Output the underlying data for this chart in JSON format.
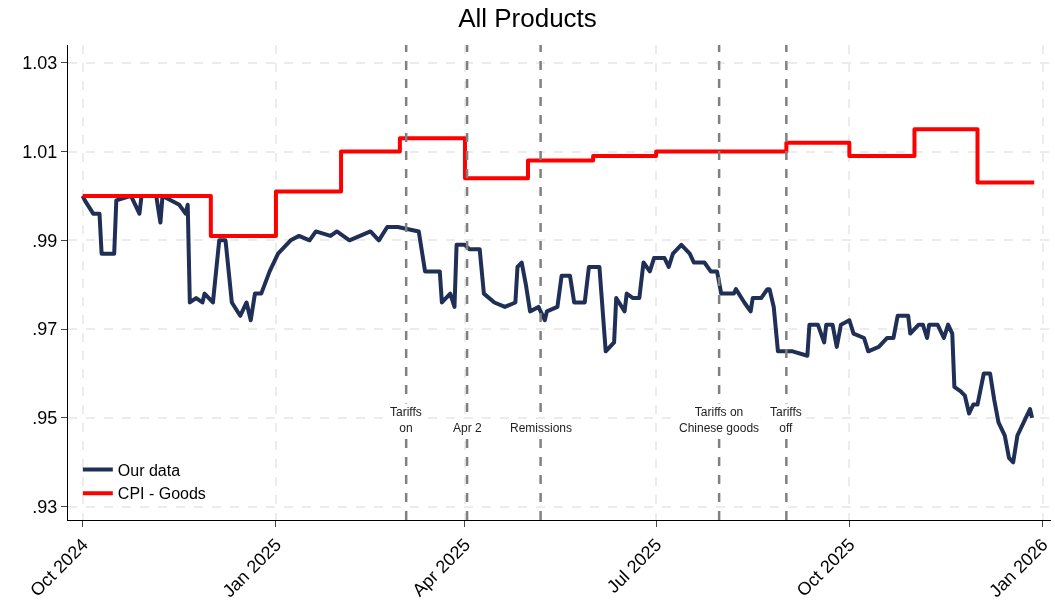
{
  "chart_data": {
    "type": "line",
    "title": "All Products",
    "xlim": [
      "2024-09-24",
      "2026-01-05"
    ],
    "xticks": [
      {
        "value": "2024-10-01",
        "label": "Oct 2024"
      },
      {
        "value": "2025-01-01",
        "label": "Jan 2025"
      },
      {
        "value": "2025-04-01",
        "label": "Apr 2025"
      },
      {
        "value": "2025-07-01",
        "label": "Jul 2025"
      },
      {
        "value": "2025-10-01",
        "label": "Oct 2025"
      },
      {
        "value": "2026-01-01",
        "label": "Jan 2026"
      }
    ],
    "ylim": [
      0.927,
      1.034
    ],
    "yticks": [
      {
        "value": 0.93,
        "label": ".93"
      },
      {
        "value": 0.95,
        "label": ".95"
      },
      {
        "value": 0.97,
        "label": ".97"
      },
      {
        "value": 0.99,
        "label": ".99"
      },
      {
        "value": 1.01,
        "label": "1.01"
      },
      {
        "value": 1.03,
        "label": "1.03"
      }
    ],
    "grid": true,
    "legend": "bottom left",
    "line_style": "solid",
    "marker": "none",
    "series": [
      {
        "name": "Our data",
        "color": "#1f2f55",
        "x": [
          "2024-10-01",
          "2024-10-02",
          "2024-10-06",
          "2024-10-09",
          "2024-10-10",
          "2024-10-16",
          "2024-10-17",
          "2024-10-24",
          "2024-10-28",
          "2024-10-29",
          "2024-11-05",
          "2024-11-07",
          "2024-11-08",
          "2024-11-16",
          "2024-11-19",
          "2024-11-20",
          "2024-11-21",
          "2024-11-24",
          "2024-11-27",
          "2024-11-28",
          "2024-12-02",
          "2024-12-05",
          "2024-12-08",
          "2024-12-11",
          "2024-12-15",
          "2024-12-18",
          "2024-12-20",
          "2024-12-22",
          "2024-12-25",
          "2024-12-29",
          "2025-01-02",
          "2025-01-08",
          "2025-01-12",
          "2025-01-17",
          "2025-01-20",
          "2025-01-27",
          "2025-01-30",
          "2025-02-05",
          "2025-02-10",
          "2025-02-15",
          "2025-02-19",
          "2025-02-23",
          "2025-02-28",
          "2025-03-10",
          "2025-03-13",
          "2025-03-20",
          "2025-03-21",
          "2025-03-25",
          "2025-03-27",
          "2025-03-28",
          "2025-04-01",
          "2025-04-03",
          "2025-04-08",
          "2025-04-10",
          "2025-04-15",
          "2025-04-20",
          "2025-04-25",
          "2025-04-26",
          "2025-04-28",
          "2025-04-30",
          "2025-05-02",
          "2025-05-06",
          "2025-05-09",
          "2025-05-10",
          "2025-05-15",
          "2025-05-17",
          "2025-05-21",
          "2025-05-23",
          "2025-05-28",
          "2025-05-30",
          "2025-06-04",
          "2025-06-07",
          "2025-06-11",
          "2025-06-12",
          "2025-06-16",
          "2025-06-17",
          "2025-06-20",
          "2025-06-23",
          "2025-06-25",
          "2025-06-28",
          "2025-06-30",
          "2025-07-05",
          "2025-07-07",
          "2025-07-09",
          "2025-07-13",
          "2025-07-17",
          "2025-07-19",
          "2025-07-24",
          "2025-07-27",
          "2025-07-30",
          "2025-08-01",
          "2025-08-07",
          "2025-08-08",
          "2025-08-12",
          "2025-08-15",
          "2025-08-16",
          "2025-08-20",
          "2025-08-23",
          "2025-08-24",
          "2025-08-26",
          "2025-08-28",
          "2025-09-04",
          "2025-09-11",
          "2025-09-12",
          "2025-09-16",
          "2025-09-19",
          "2025-09-20",
          "2025-09-23",
          "2025-09-25",
          "2025-09-27",
          "2025-10-01",
          "2025-10-03",
          "2025-10-08",
          "2025-10-10",
          "2025-10-15",
          "2025-10-17",
          "2025-10-19",
          "2025-10-22",
          "2025-10-24",
          "2025-10-29",
          "2025-10-30",
          "2025-11-03",
          "2025-11-05",
          "2025-11-07",
          "2025-11-08",
          "2025-11-12",
          "2025-11-15",
          "2025-11-17",
          "2025-11-19",
          "2025-11-20",
          "2025-11-23",
          "2025-11-25",
          "2025-11-27",
          "2025-11-29",
          "2025-12-01",
          "2025-12-04",
          "2025-12-07",
          "2025-12-09",
          "2025-12-11",
          "2025-12-14",
          "2025-12-16",
          "2025-12-18",
          "2025-12-20",
          "2025-12-24",
          "2025-12-26",
          "2025-12-27"
        ],
        "values": [
          1.0,
          0.999,
          0.996,
          0.996,
          0.987,
          0.987,
          0.999,
          1.0,
          0.996,
          1.0,
          1.0,
          0.994,
          1.0,
          0.998,
          0.996,
          0.998,
          0.976,
          0.977,
          0.976,
          0.978,
          0.976,
          0.99,
          0.99,
          0.976,
          0.973,
          0.976,
          0.972,
          0.978,
          0.978,
          0.983,
          0.987,
          0.99,
          0.991,
          0.99,
          0.992,
          0.991,
          0.992,
          0.99,
          0.991,
          0.992,
          0.99,
          0.993,
          0.993,
          0.992,
          0.983,
          0.983,
          0.976,
          0.978,
          0.975,
          0.989,
          0.989,
          0.988,
          0.988,
          0.978,
          0.976,
          0.975,
          0.976,
          0.984,
          0.985,
          0.98,
          0.974,
          0.975,
          0.972,
          0.974,
          0.975,
          0.982,
          0.982,
          0.976,
          0.976,
          0.984,
          0.984,
          0.965,
          0.967,
          0.977,
          0.974,
          0.978,
          0.977,
          0.977,
          0.985,
          0.983,
          0.986,
          0.986,
          0.984,
          0.987,
          0.989,
          0.987,
          0.985,
          0.985,
          0.983,
          0.983,
          0.978,
          0.978,
          0.979,
          0.976,
          0.974,
          0.977,
          0.977,
          0.979,
          0.979,
          0.975,
          0.965,
          0.965,
          0.964,
          0.971,
          0.971,
          0.967,
          0.971,
          0.971,
          0.966,
          0.971,
          0.972,
          0.969,
          0.968,
          0.965,
          0.966,
          0.967,
          0.968,
          0.968,
          0.973,
          0.973,
          0.969,
          0.971,
          0.971,
          0.968,
          0.971,
          0.971,
          0.968,
          0.971,
          0.969,
          0.957,
          0.956,
          0.955,
          0.951,
          0.953,
          0.953,
          0.96,
          0.96,
          0.954,
          0.949,
          0.946,
          0.941,
          0.94,
          0.946,
          0.95,
          0.952,
          0.95
        ]
      },
      {
        "name": "CPI - Goods",
        "color": "#ff0000",
        "type": "step",
        "x": [
          "2024-10-01",
          "2024-12-01",
          "2025-01-01",
          "2025-02-01",
          "2025-03-01",
          "2025-04-01",
          "2025-05-01",
          "2025-06-01",
          "2025-07-01",
          "2025-09-01",
          "2025-10-01",
          "2025-11-01",
          "2025-12-01",
          "2025-12-28"
        ],
        "values": [
          1.0,
          0.991,
          1.001,
          1.01,
          1.013,
          1.004,
          1.008,
          1.009,
          1.01,
          1.012,
          1.009,
          1.015,
          1.003,
          1.003
        ]
      }
    ],
    "ref_lines": [
      {
        "axis": "x",
        "value": "2025-03-04",
        "label": "Tariffs\non",
        "color": "#808080",
        "line_style": "dashed"
      },
      {
        "axis": "x",
        "value": "2025-04-02",
        "label": "Apr 2",
        "color": "#808080",
        "line_style": "dashed"
      },
      {
        "axis": "x",
        "value": "2025-05-07",
        "label": "Remissions",
        "color": "#808080",
        "line_style": "dashed"
      },
      {
        "axis": "x",
        "value": "2025-07-31",
        "label": "Tariffs on\nChinese goods",
        "color": "#808080",
        "line_style": "dashed"
      },
      {
        "axis": "x",
        "value": "2025-09-01",
        "label": "Tariffs\noff",
        "color": "#808080",
        "line_style": "dashed"
      }
    ]
  }
}
